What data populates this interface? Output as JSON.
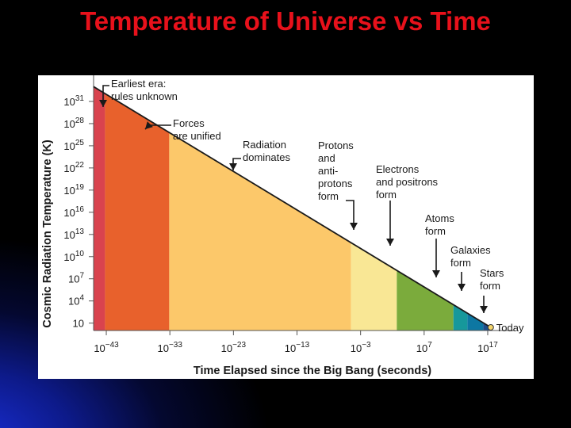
{
  "title": "Temperature of Universe vs Time",
  "chart_data": {
    "type": "area",
    "xlabel": "Time Elapsed since the Big Bang (seconds)",
    "ylabel": "Cosmic Radiation Temperature (K)",
    "x_scale": "log",
    "y_scale": "log",
    "xlim": [
      1e-45,
      1e+18
    ],
    "ylim": [
      1,
      1e+34
    ],
    "x_ticks": [
      {
        "base": "10",
        "exp": "−43",
        "value": 1e-43
      },
      {
        "base": "10",
        "exp": "−33",
        "value": 1e-33
      },
      {
        "base": "10",
        "exp": "−23",
        "value": 1e-23
      },
      {
        "base": "10",
        "exp": "−13",
        "value": 1e-13
      },
      {
        "base": "10",
        "exp": "−3",
        "value": 0.001
      },
      {
        "base": "10",
        "exp": "7",
        "value": 10000000.0
      },
      {
        "base": "10",
        "exp": "17",
        "value": 1e+17
      }
    ],
    "y_ticks": [
      {
        "base": "10",
        "exp": "",
        "value": 10
      },
      {
        "base": "10",
        "exp": "4",
        "value": 10000.0
      },
      {
        "base": "10",
        "exp": "7",
        "value": 10000000.0
      },
      {
        "base": "10",
        "exp": "10",
        "value": 10000000000.0
      },
      {
        "base": "10",
        "exp": "13",
        "value": 10000000000000.0
      },
      {
        "base": "10",
        "exp": "16",
        "value": 1e+16
      },
      {
        "base": "10",
        "exp": "19",
        "value": 1e+19
      },
      {
        "base": "10",
        "exp": "22",
        "value": 1e+22
      },
      {
        "base": "10",
        "exp": "25",
        "value": 1e+25
      },
      {
        "base": "10",
        "exp": "28",
        "value": 1e+28
      },
      {
        "base": "10",
        "exp": "31",
        "value": 1e+31
      }
    ],
    "series": [
      {
        "points": [
          [
            1e-45,
            1e+33
          ],
          [
            3e+17,
            2.7
          ]
        ]
      }
    ],
    "eras": [
      {
        "from": -45,
        "to": -43.2,
        "color": "#d9434e"
      },
      {
        "from": -43.2,
        "to": -33.1,
        "color": "#e8612c"
      },
      {
        "from": -33.1,
        "to": -4.5,
        "color": "#fcc86a"
      },
      {
        "from": -4.5,
        "to": 2.7,
        "color": "#f9e795"
      },
      {
        "from": 2.7,
        "to": 11.6,
        "color": "#7bab3c"
      },
      {
        "from": 11.6,
        "to": 13.8,
        "color": "#16989b"
      },
      {
        "from": 13.8,
        "to": 16.3,
        "color": "#0d77a2"
      },
      {
        "from": 16.3,
        "to": 17.5,
        "color": "#1d4e8a"
      }
    ],
    "annotations": [
      {
        "lines": [
          "Earliest era:",
          "rules unknown"
        ],
        "arrow_x_log": -44.5
      },
      {
        "lines": [
          "Forces",
          "are unified"
        ],
        "arrow_x_log": -36.5
      },
      {
        "lines": [
          "Radiation",
          "dominates"
        ],
        "arrow_x_log": -24.0
      },
      {
        "lines": [
          "Protons",
          "and",
          "anti-",
          "protons",
          "form"
        ],
        "arrow_x_log": -6.0
      },
      {
        "lines": [
          "Electrons",
          "and positrons",
          "form"
        ],
        "arrow_x_log": 1.0
      },
      {
        "lines": [
          "Atoms",
          "form"
        ],
        "arrow_x_log": 12.3
      },
      {
        "lines": [
          "Galaxies",
          "form"
        ],
        "arrow_x_log": 15.8
      },
      {
        "lines": [
          "Stars",
          "form"
        ],
        "arrow_x_log": 17.4
      }
    ],
    "endpoint_label": "Today",
    "colors": {
      "curve": "#1a1a1a",
      "axis": "#555555",
      "today_marker": "#f5d76e"
    }
  }
}
